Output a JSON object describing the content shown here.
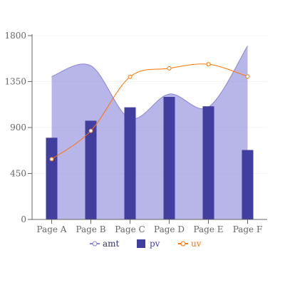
{
  "chart_data": {
    "type": "bar",
    "categories": [
      "Page A",
      "Page B",
      "Page C",
      "Page D",
      "Page E",
      "Page F"
    ],
    "series": [
      {
        "name": "amt",
        "type": "area",
        "color": "#8884d8",
        "values": [
          1400,
          1505,
          989,
          1228,
          1100,
          1700
        ]
      },
      {
        "name": "pv",
        "type": "bar",
        "color": "#413ea0",
        "values": [
          800,
          967,
          1098,
          1200,
          1108,
          680
        ]
      },
      {
        "name": "uv",
        "type": "line",
        "color": "#ff7300",
        "values": [
          590,
          868,
          1397,
          1480,
          1520,
          1400
        ]
      }
    ],
    "y_ticks": [
      "0",
      "450",
      "900",
      "1350",
      "1800"
    ],
    "ylim": [
      0,
      1800
    ],
    "grid": "horizontal",
    "legend_position": "bottom",
    "colors": {
      "axis": "#666666",
      "grid": "#f5f5f5"
    }
  }
}
